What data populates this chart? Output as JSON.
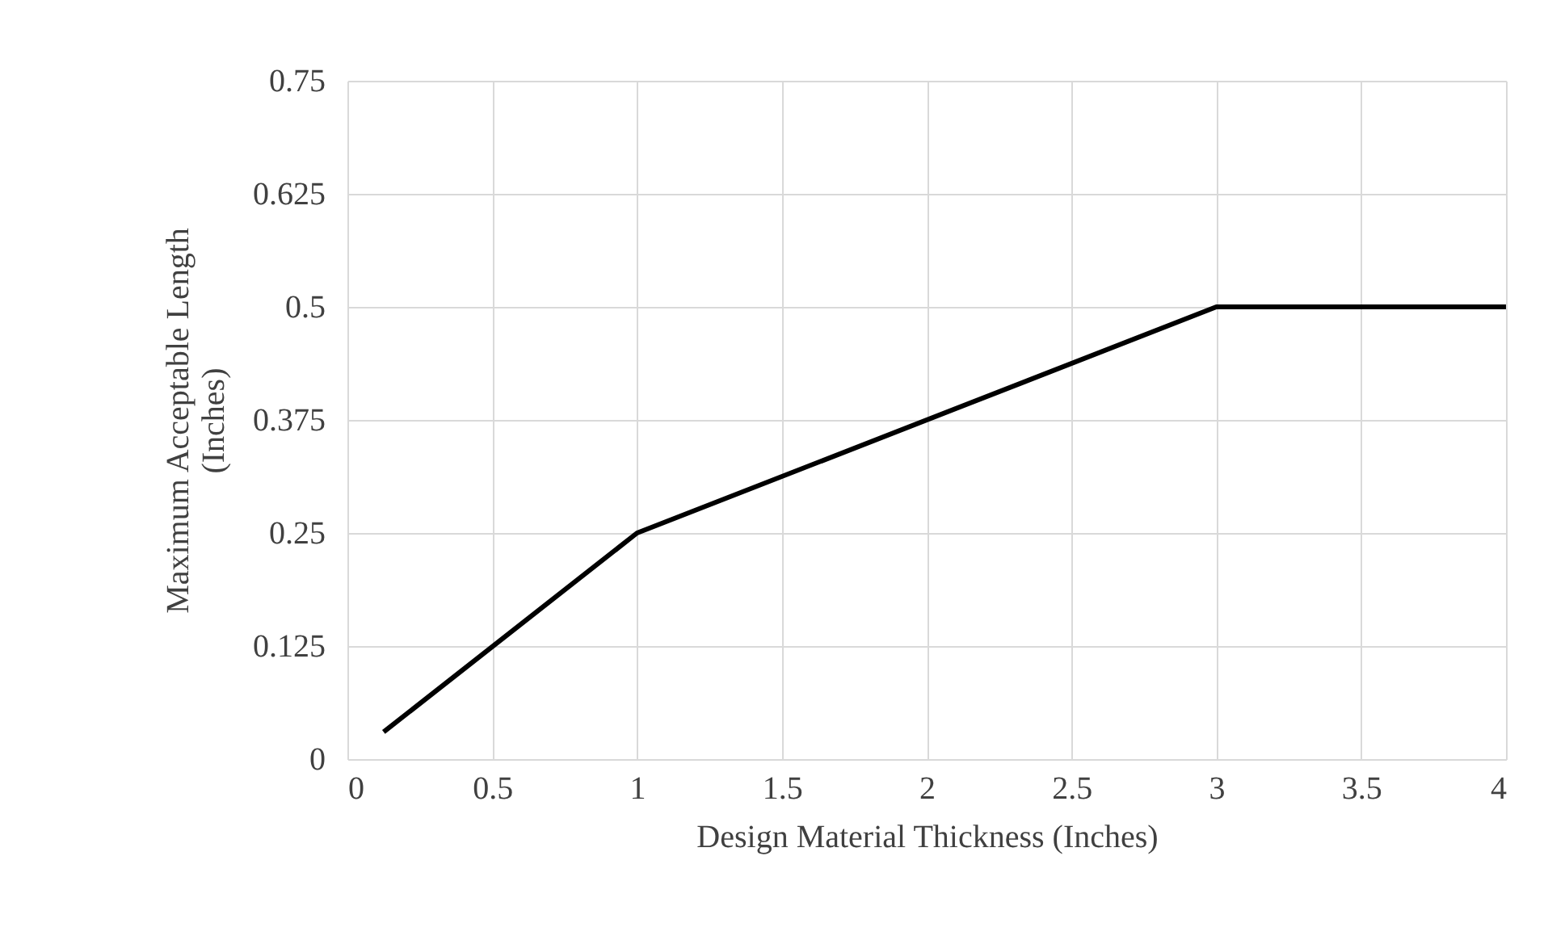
{
  "chart_data": {
    "type": "line",
    "xlabel": "Design Material Thickness (Inches)",
    "ylabel": "Maximum Acceptable Length (Inches)",
    "x": [
      0.125,
      1,
      3,
      4
    ],
    "series": [
      {
        "color": "#000000",
        "values": [
          0.03,
          0.25,
          0.5,
          0.5
        ]
      }
    ],
    "xlim": [
      0,
      4
    ],
    "xticks": [
      0,
      0.5,
      1,
      1.5,
      2,
      2.5,
      3,
      3.5,
      4
    ],
    "ylim": [
      0,
      0.75
    ],
    "yticks": [
      0,
      0.125,
      0.25,
      0.375,
      0.5,
      0.625,
      0.75
    ],
    "grid": true,
    "marker": "none",
    "line_style": "solid"
  }
}
